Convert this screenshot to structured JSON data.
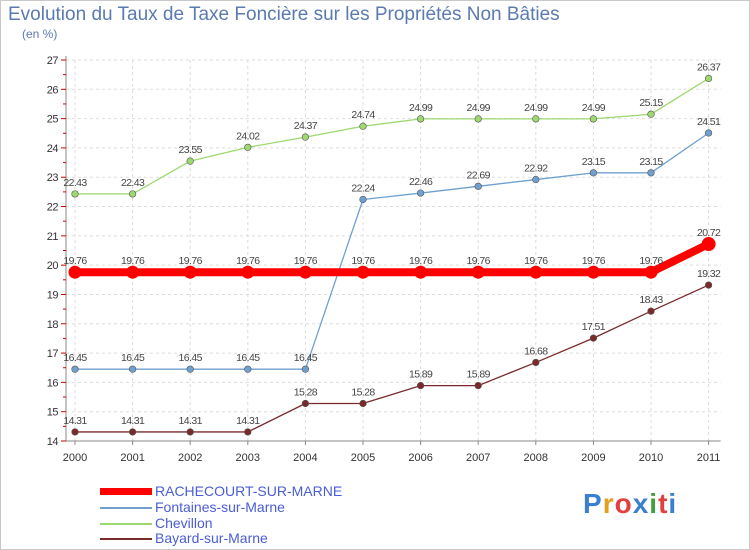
{
  "chart_data": {
    "type": "line",
    "title": "Evolution du Taux de Taxe Foncière sur les Propriétés Non Bâties",
    "unit_label": "(en %)",
    "categories": [
      "2000",
      "2001",
      "2002",
      "2003",
      "2004",
      "2005",
      "2006",
      "2007",
      "2008",
      "2009",
      "2010",
      "2011"
    ],
    "ylim": [
      14,
      27
    ],
    "yticks": [
      "14",
      "15",
      "16",
      "17",
      "18",
      "19",
      "20",
      "21",
      "22",
      "23",
      "24",
      "25",
      "26",
      "27"
    ],
    "series": [
      {
        "name": "RACHECOURT-SUR-MARNE",
        "color": "#ff0000",
        "values": [
          19.76,
          19.76,
          19.76,
          19.76,
          19.76,
          19.76,
          19.76,
          19.76,
          19.76,
          19.76,
          19.76,
          20.72
        ],
        "labels": [
          "19.76",
          "19.76",
          "19.76",
          "19.76",
          "19.76",
          "19.76",
          "19.76",
          "19.76",
          "19.76",
          "19.76",
          "19.76",
          "20.72"
        ]
      },
      {
        "name": "Fontaines-sur-Marne",
        "color": "#6fa0d0",
        "values": [
          16.45,
          16.45,
          16.45,
          16.45,
          16.45,
          22.24,
          22.46,
          22.69,
          22.92,
          23.15,
          23.15,
          24.51
        ],
        "labels": [
          "16.45",
          "16.45",
          "16.45",
          "16.45",
          "16.45",
          "22.24",
          "22.46",
          "22.69",
          "22.92",
          "23.15",
          "23.15",
          "24.51"
        ]
      },
      {
        "name": "Chevillon",
        "color": "#9ed870",
        "values": [
          22.43,
          22.43,
          23.55,
          24.02,
          24.37,
          24.74,
          24.99,
          24.99,
          24.99,
          24.99,
          25.15,
          26.37
        ],
        "labels": [
          "22.43",
          "22.43",
          "23.55",
          "24.02",
          "24.37",
          "24.74",
          "24.99",
          "24.99",
          "24.99",
          "24.99",
          "25.15",
          "26.37"
        ]
      },
      {
        "name": "Bayard-sur-Marne",
        "color": "#7a2a2a",
        "values": [
          14.31,
          14.31,
          14.31,
          14.31,
          15.28,
          15.28,
          15.89,
          15.89,
          16.68,
          17.51,
          18.43,
          19.32
        ],
        "labels": [
          "14.31",
          "14.31",
          "14.31",
          "14.31",
          "15.28",
          "15.28",
          "15.89",
          "15.89",
          "16.68",
          "17.51",
          "18.43",
          "19.32"
        ]
      }
    ]
  },
  "logo": {
    "text": "Proxiti",
    "colors": [
      "#3a7fd0",
      "#e0a020",
      "#e04040",
      "#3a7fd0",
      "#40a040",
      "#e04040",
      "#3a7fd0"
    ]
  }
}
